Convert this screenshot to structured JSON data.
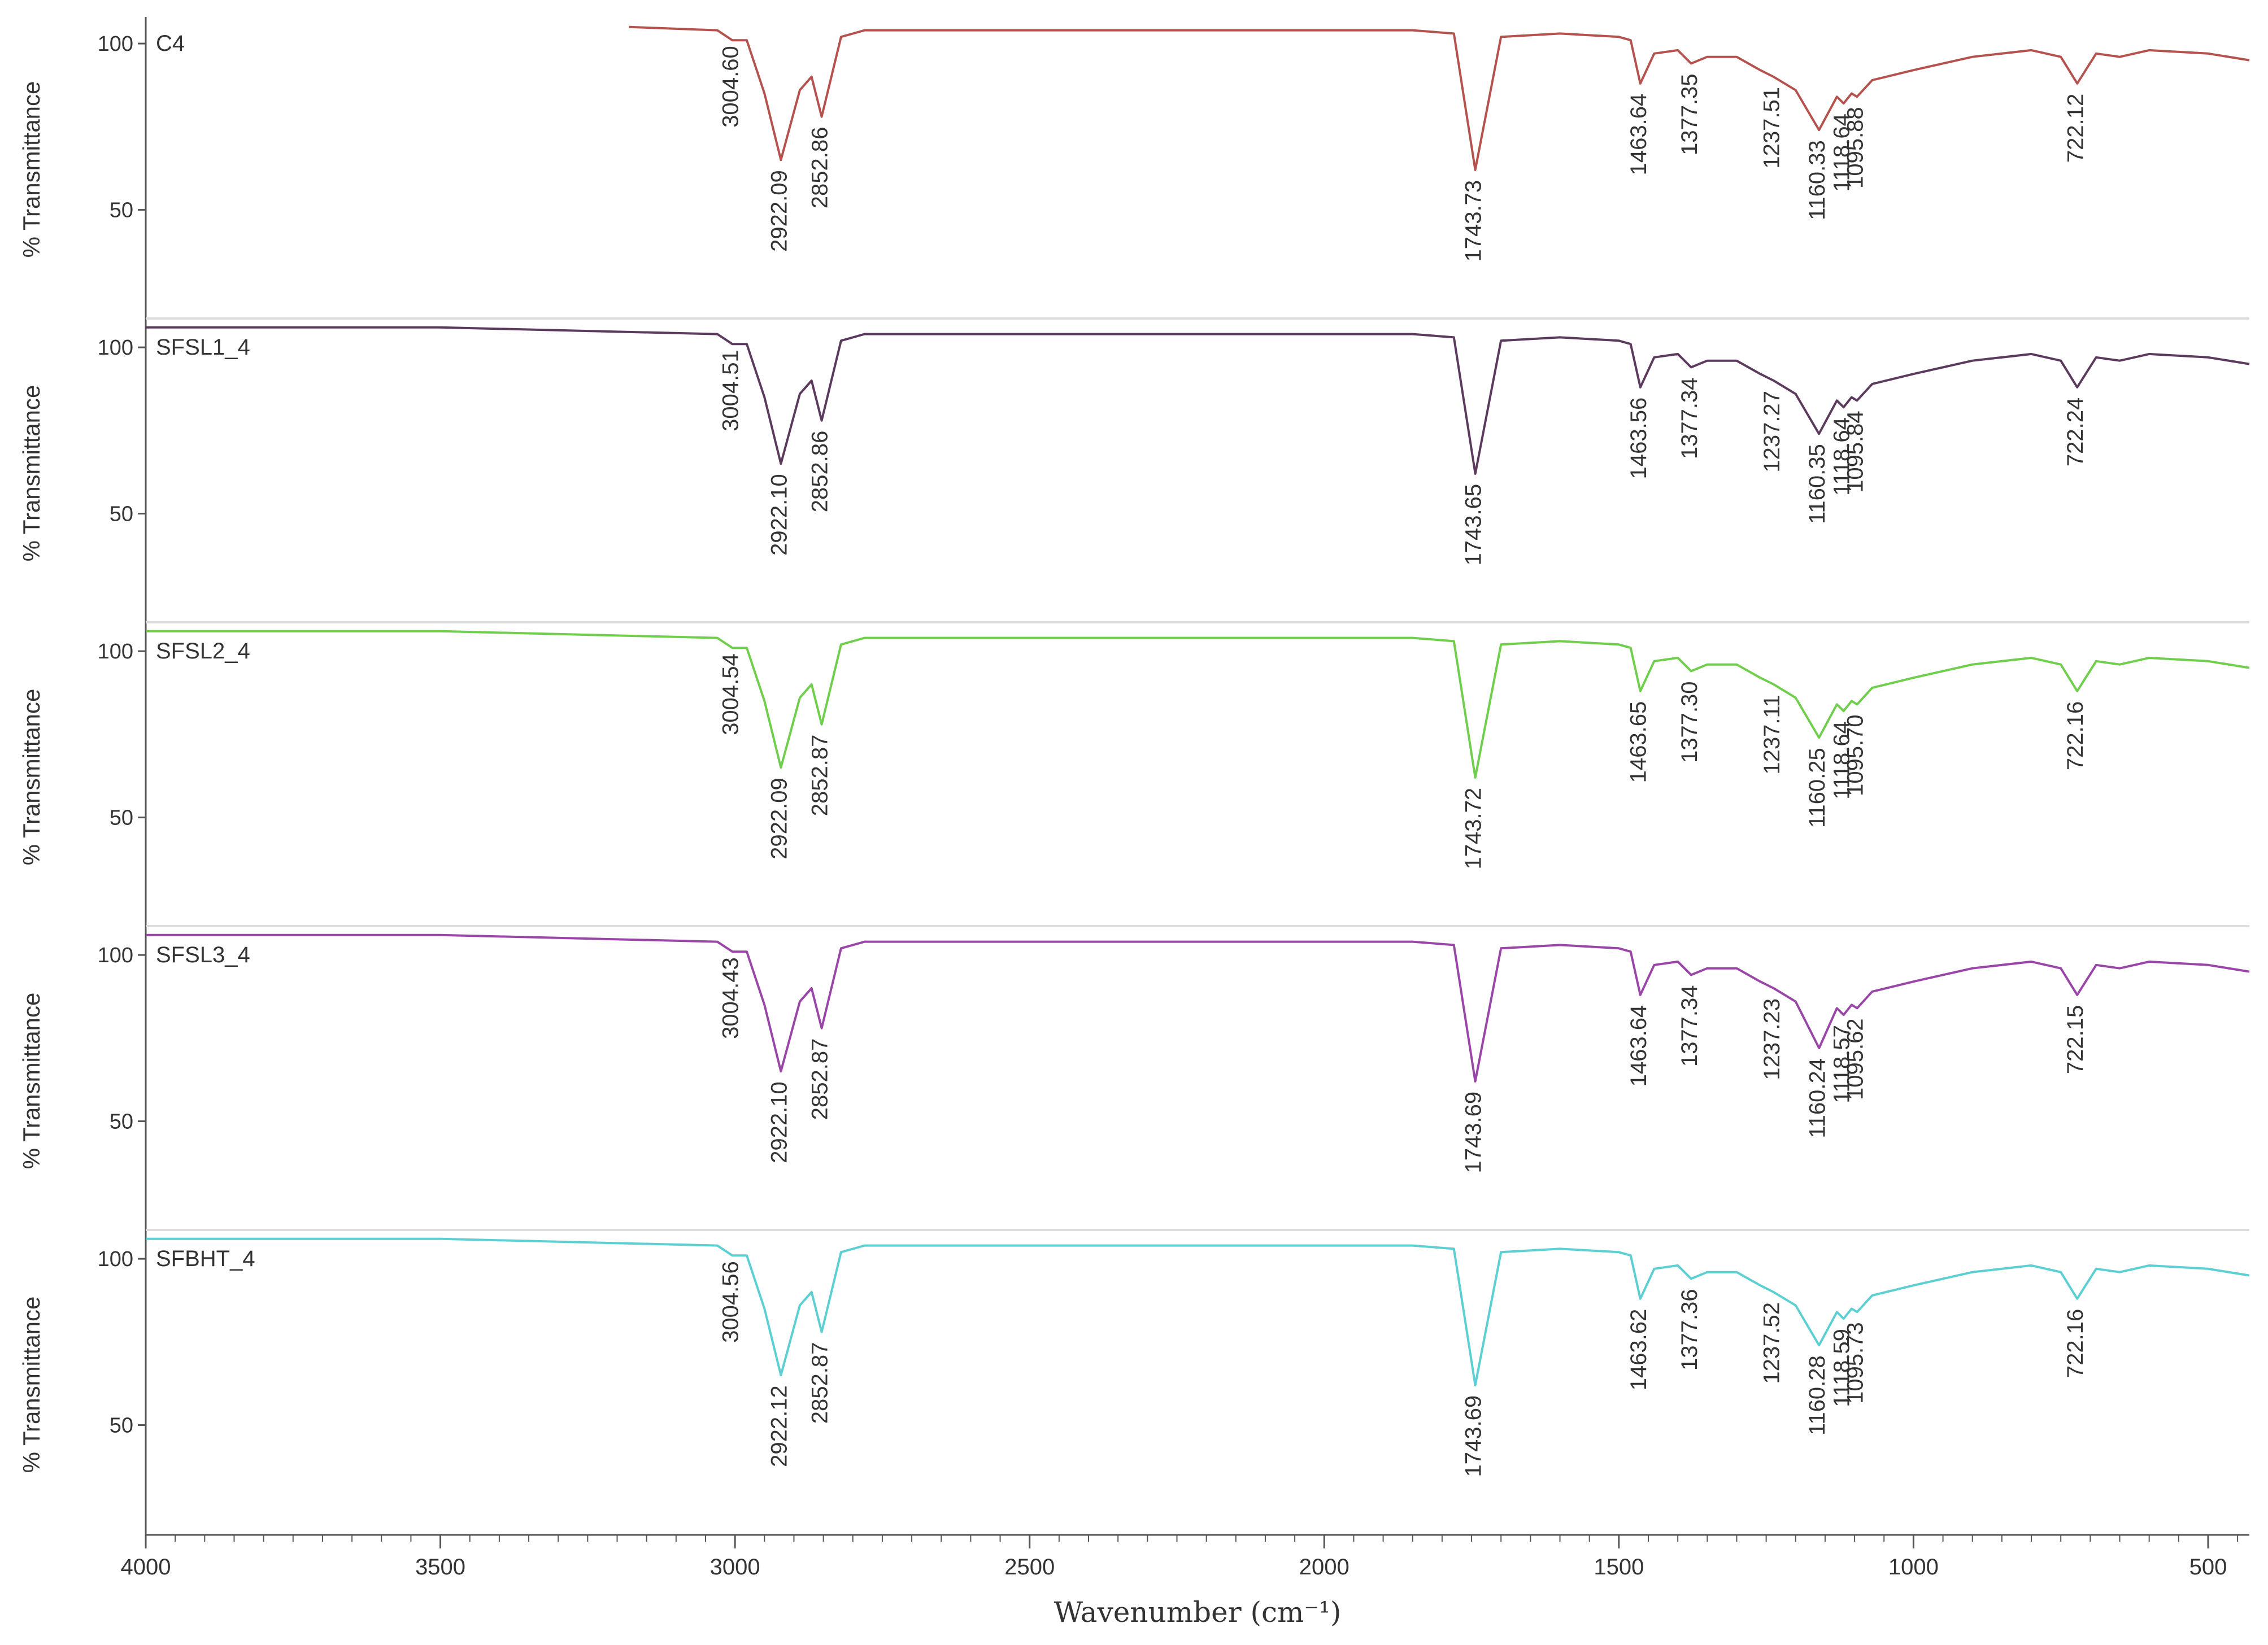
{
  "chart_data": {
    "type": "line",
    "xlabel": "Wavenumber (cm⁻¹)",
    "ylabel": "% Transmittance",
    "xlim": [
      4000,
      430
    ],
    "x_ticks": [
      4000,
      3500,
      3000,
      2500,
      2000,
      1500,
      1000,
      500
    ],
    "panel_ylim": [
      18,
      108
    ],
    "y_ticks": [
      100,
      50
    ],
    "panels": [
      {
        "name": "C4",
        "color": "#b5524e",
        "start_x": 3180,
        "x": [
          3180,
          3030,
          3004.6,
          2980,
          2950,
          2922.09,
          2890,
          2870,
          2852.86,
          2820,
          2780,
          1850,
          1780,
          1743.73,
          1700,
          1600,
          1500,
          1480,
          1463.64,
          1440,
          1400,
          1377.35,
          1350,
          1300,
          1260,
          1237.51,
          1200,
          1160.33,
          1130,
          1118.64,
          1105,
          1095.88,
          1070,
          1000,
          900,
          800,
          750,
          722.12,
          690,
          650,
          600,
          500,
          430
        ],
        "y": [
          105,
          104,
          101,
          101,
          85,
          65,
          86,
          90,
          78,
          102,
          104,
          104,
          103,
          62,
          102,
          103,
          102,
          101,
          88,
          97,
          98,
          94,
          96,
          96,
          92,
          90,
          86,
          74,
          84,
          82,
          85,
          84,
          89,
          92,
          96,
          98,
          96,
          88,
          97,
          96,
          98,
          97,
          95
        ],
        "peak_labels": [
          "3004.60",
          "2922.09",
          "2852.86",
          "1743.73",
          "1463.64",
          "1377.35",
          "1237.51",
          "1160.33",
          "1118.64",
          "1095.88",
          "722.12"
        ]
      },
      {
        "name": "SFSL1_4",
        "color": "#5b3a5d",
        "start_x": 4000,
        "x": [
          4000,
          3500,
          3030,
          3004.51,
          2980,
          2950,
          2922.1,
          2890,
          2870,
          2852.86,
          2820,
          2780,
          1850,
          1780,
          1743.65,
          1700,
          1600,
          1500,
          1480,
          1463.56,
          1440,
          1400,
          1377.34,
          1350,
          1300,
          1260,
          1237.27,
          1200,
          1160.35,
          1130,
          1118.64,
          1105,
          1095.84,
          1070,
          1000,
          900,
          800,
          750,
          722.24,
          690,
          650,
          600,
          500,
          430
        ],
        "y": [
          106,
          106,
          104,
          101,
          101,
          85,
          65,
          86,
          90,
          78,
          102,
          104,
          104,
          103,
          62,
          102,
          103,
          102,
          101,
          88,
          97,
          98,
          94,
          96,
          96,
          92,
          90,
          86,
          74,
          84,
          82,
          85,
          84,
          89,
          92,
          96,
          98,
          96,
          88,
          97,
          96,
          98,
          97,
          95
        ],
        "peak_labels": [
          "3004.51",
          "2922.10",
          "2852.86",
          "1743.65",
          "1463.56",
          "1377.34",
          "1237.27",
          "1160.35",
          "1118.64",
          "1095.84",
          "722.24"
        ]
      },
      {
        "name": "SFSL2_4",
        "color": "#6fce4c",
        "start_x": 4000,
        "x": [
          4000,
          3500,
          3030,
          3004.54,
          2980,
          2950,
          2922.09,
          2890,
          2870,
          2852.87,
          2820,
          2780,
          1850,
          1780,
          1743.72,
          1700,
          1600,
          1500,
          1480,
          1463.65,
          1440,
          1400,
          1377.3,
          1350,
          1300,
          1260,
          1237.11,
          1200,
          1160.25,
          1130,
          1118.64,
          1105,
          1095.7,
          1070,
          1000,
          900,
          800,
          750,
          722.16,
          690,
          650,
          600,
          500,
          430
        ],
        "y": [
          106,
          106,
          104,
          101,
          101,
          85,
          65,
          86,
          90,
          78,
          102,
          104,
          104,
          103,
          62,
          102,
          103,
          102,
          101,
          88,
          97,
          98,
          94,
          96,
          96,
          92,
          90,
          86,
          74,
          84,
          82,
          85,
          84,
          89,
          92,
          96,
          98,
          96,
          88,
          97,
          96,
          98,
          97,
          95
        ],
        "peak_labels": [
          "3004.54",
          "2922.09",
          "2852.87",
          "1743.72",
          "1463.65",
          "1377.30",
          "1237.11",
          "1160.25",
          "1118.64",
          "1095.70",
          "722.16"
        ]
      },
      {
        "name": "SFSL3_4",
        "color": "#9a45a8",
        "start_x": 4000,
        "x": [
          4000,
          3500,
          3030,
          3004.43,
          2980,
          2950,
          2922.1,
          2890,
          2870,
          2852.87,
          2820,
          2780,
          1850,
          1780,
          1743.69,
          1700,
          1600,
          1500,
          1480,
          1463.64,
          1440,
          1400,
          1377.34,
          1350,
          1300,
          1260,
          1237.23,
          1200,
          1160.24,
          1130,
          1118.57,
          1105,
          1095.62,
          1070,
          1000,
          900,
          800,
          750,
          722.15,
          690,
          650,
          600,
          500,
          430
        ],
        "y": [
          106,
          106,
          104,
          101,
          101,
          85,
          65,
          86,
          90,
          78,
          102,
          104,
          104,
          103,
          62,
          102,
          103,
          102,
          101,
          88,
          97,
          98,
          94,
          96,
          96,
          92,
          90,
          86,
          72,
          84,
          82,
          85,
          84,
          89,
          92,
          96,
          98,
          96,
          88,
          97,
          96,
          98,
          97,
          95
        ],
        "peak_labels": [
          "3004.43",
          "2922.10",
          "2852.87",
          "1743.69",
          "1463.64",
          "1377.34",
          "1237.23",
          "1160.24",
          "1118.57",
          "1095.62",
          "722.15"
        ]
      },
      {
        "name": "SFBHT_4",
        "color": "#5ccfd2",
        "start_x": 4000,
        "x": [
          4000,
          3500,
          3030,
          3004.56,
          2980,
          2950,
          2922.12,
          2890,
          2870,
          2852.87,
          2820,
          2780,
          1850,
          1780,
          1743.69,
          1700,
          1600,
          1500,
          1480,
          1463.62,
          1440,
          1400,
          1377.36,
          1350,
          1300,
          1260,
          1237.52,
          1200,
          1160.28,
          1130,
          1118.59,
          1105,
          1095.73,
          1070,
          1000,
          900,
          800,
          750,
          722.16,
          690,
          650,
          600,
          500,
          430
        ],
        "y": [
          106,
          106,
          104,
          101,
          101,
          85,
          65,
          86,
          90,
          78,
          102,
          104,
          104,
          103,
          62,
          102,
          103,
          102,
          101,
          88,
          97,
          98,
          94,
          96,
          96,
          92,
          90,
          86,
          74,
          84,
          82,
          85,
          84,
          89,
          92,
          96,
          98,
          96,
          88,
          97,
          96,
          98,
          97,
          95
        ],
        "peak_labels": [
          "3004.56",
          "2922.12",
          "2852.87",
          "1743.69",
          "1463.62",
          "1377.36",
          "1237.52",
          "1160.28",
          "1118.59",
          "1095.73",
          "722.16"
        ]
      }
    ]
  }
}
